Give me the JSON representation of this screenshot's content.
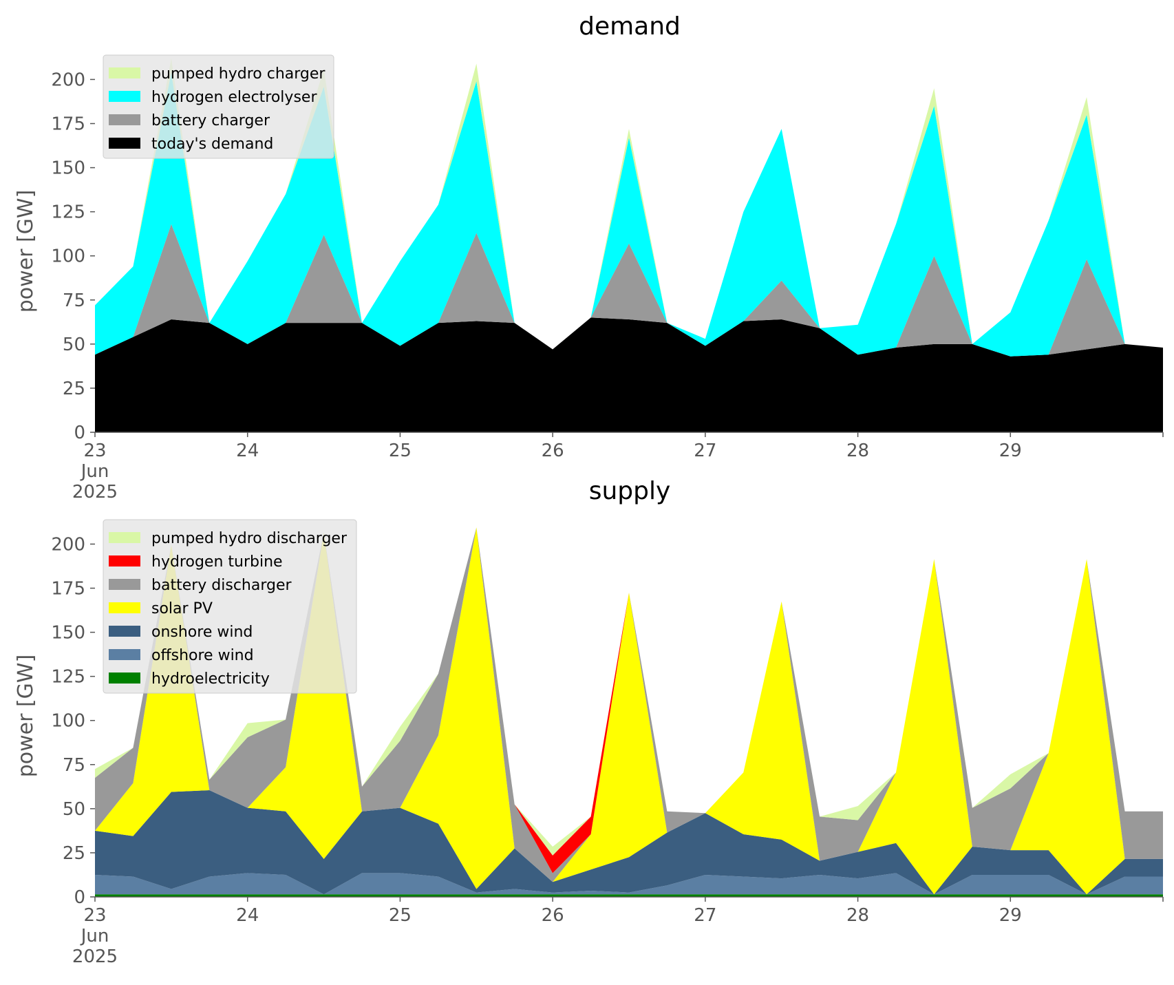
{
  "chart_data": [
    {
      "type": "area",
      "stacked": true,
      "title": "demand",
      "ylabel": "power [GW]",
      "xlabel": "",
      "ylim": [
        0,
        215
      ],
      "yticks": [
        0,
        25,
        50,
        75,
        100,
        125,
        150,
        175,
        200
      ],
      "xlim": [
        "2025-06-23",
        "2025-06-30"
      ],
      "x_tick_labels": [
        "23\nJun\n2025",
        "24",
        "25",
        "26",
        "27",
        "28",
        "29"
      ],
      "grid": false,
      "legend_position": "upper-left",
      "legend": [
        "pumped hydro charger",
        "hydrogen electrolyser",
        "battery charger",
        "today's demand"
      ],
      "x": [
        "2025-06-23",
        "2025-06-23T06:00",
        "2025-06-23T12:00",
        "2025-06-23T18:00",
        "2025-06-24",
        "2025-06-24T06:00",
        "2025-06-24T12:00",
        "2025-06-24T18:00",
        "2025-06-25",
        "2025-06-25T06:00",
        "2025-06-25T12:00",
        "2025-06-25T18:00",
        "2025-06-26",
        "2025-06-26T06:00",
        "2025-06-26T12:00",
        "2025-06-26T18:00",
        "2025-06-27",
        "2025-06-27T06:00",
        "2025-06-27T12:00",
        "2025-06-27T18:00",
        "2025-06-28",
        "2025-06-28T06:00",
        "2025-06-28T12:00",
        "2025-06-28T18:00",
        "2025-06-29",
        "2025-06-29T06:00",
        "2025-06-29T12:00",
        "2025-06-29T18:00",
        "2025-06-30"
      ],
      "series": [
        {
          "name": "today's demand",
          "color": "#000000",
          "values": [
            44,
            54,
            64,
            62,
            50,
            62,
            62,
            62,
            49,
            62,
            63,
            62,
            47,
            65,
            64,
            62,
            49,
            63,
            64,
            59,
            44,
            48,
            50,
            50,
            43,
            44,
            47,
            50,
            48
          ]
        },
        {
          "name": "battery charger",
          "color": "#999999",
          "values": [
            0,
            0,
            54,
            0,
            0,
            0,
            50,
            0,
            0,
            0,
            50,
            0,
            0,
            0,
            43,
            0,
            0,
            0,
            22,
            0,
            0,
            0,
            50,
            0,
            0,
            0,
            51,
            0,
            0
          ]
        },
        {
          "name": "hydrogen electrolyser",
          "color": "#00ffff",
          "values": [
            28,
            40,
            86,
            0,
            47,
            73,
            84,
            0,
            48,
            67,
            86,
            0,
            0,
            0,
            60,
            0,
            4,
            62,
            86,
            0,
            17,
            70,
            85,
            0,
            25,
            76,
            82,
            0,
            0
          ]
        },
        {
          "name": "pumped hydro charger",
          "color": "#d9f7a6",
          "values": [
            0,
            0,
            8,
            0,
            0,
            0,
            10,
            0,
            0,
            0,
            10,
            0,
            0,
            0,
            5,
            0,
            0,
            0,
            0,
            0,
            0,
            0,
            10,
            0,
            0,
            0,
            10,
            0,
            0
          ]
        }
      ]
    },
    {
      "type": "area",
      "stacked": true,
      "title": "supply",
      "ylabel": "power [GW]",
      "xlabel": "",
      "ylim": [
        0,
        215
      ],
      "yticks": [
        0,
        25,
        50,
        75,
        100,
        125,
        150,
        175,
        200
      ],
      "xlim": [
        "2025-06-23",
        "2025-06-30"
      ],
      "x_tick_labels": [
        "23\nJun\n2025",
        "24",
        "25",
        "26",
        "27",
        "28",
        "29"
      ],
      "grid": false,
      "legend_position": "upper-left",
      "legend": [
        "pumped hydro discharger",
        "hydrogen turbine",
        "battery discharger",
        "solar PV",
        "onshore wind",
        "offshore wind",
        "hydroelectricity"
      ],
      "x": [
        "2025-06-23",
        "2025-06-23T06:00",
        "2025-06-23T12:00",
        "2025-06-23T18:00",
        "2025-06-24",
        "2025-06-24T06:00",
        "2025-06-24T12:00",
        "2025-06-24T18:00",
        "2025-06-25",
        "2025-06-25T06:00",
        "2025-06-25T12:00",
        "2025-06-25T18:00",
        "2025-06-26",
        "2025-06-26T06:00",
        "2025-06-26T12:00",
        "2025-06-26T18:00",
        "2025-06-27",
        "2025-06-27T06:00",
        "2025-06-27T12:00",
        "2025-06-27T18:00",
        "2025-06-28",
        "2025-06-28T06:00",
        "2025-06-28T12:00",
        "2025-06-28T18:00",
        "2025-06-29",
        "2025-06-29T06:00",
        "2025-06-29T12:00",
        "2025-06-29T18:00",
        "2025-06-30"
      ],
      "series": [
        {
          "name": "hydroelectricity",
          "color": "#008000",
          "values": [
            1.5,
            1.5,
            1.5,
            1.5,
            1.5,
            1.5,
            1.5,
            1.5,
            1.5,
            1.5,
            1.5,
            1.5,
            1.5,
            1.5,
            1.5,
            1.5,
            1.5,
            1.5,
            1.5,
            1.5,
            1.5,
            1.5,
            1.5,
            1.5,
            1.5,
            1.5,
            1.5,
            1.5,
            1.5
          ]
        },
        {
          "name": "offshore wind",
          "color": "#5b7fa3",
          "values": [
            11,
            10,
            3,
            10,
            12,
            11,
            0,
            12,
            12,
            10,
            1,
            3,
            1,
            2,
            1,
            5,
            11,
            10,
            9,
            11,
            9,
            12,
            0,
            11,
            11,
            11,
            0,
            10,
            10
          ]
        },
        {
          "name": "onshore wind",
          "color": "#3b5e80",
          "values": [
            25,
            23,
            55,
            49,
            37,
            36,
            20,
            35,
            37,
            30,
            2,
            23,
            6,
            12,
            20,
            30,
            35,
            24,
            22,
            8,
            15,
            17,
            0,
            16,
            14,
            14,
            0,
            10,
            10
          ]
        },
        {
          "name": "solar PV",
          "color": "#ffff00",
          "values": [
            0,
            30,
            140,
            0,
            0,
            25,
            185,
            0,
            0,
            50,
            205,
            0,
            0,
            20,
            150,
            0,
            0,
            35,
            135,
            0,
            0,
            40,
            190,
            0,
            0,
            55,
            190,
            0,
            0
          ]
        },
        {
          "name": "battery discharger",
          "color": "#999999",
          "values": [
            30,
            20,
            0,
            6,
            40,
            27,
            0,
            14,
            38,
            35,
            0,
            25,
            5,
            0,
            0,
            12,
            0,
            0,
            0,
            25,
            18,
            0,
            0,
            22,
            35,
            0,
            0,
            27,
            27
          ]
        },
        {
          "name": "hydrogen turbine",
          "color": "#ff0000",
          "values": [
            0,
            0,
            0,
            0,
            0,
            0,
            0,
            0,
            0,
            0,
            0,
            0,
            10,
            10,
            0,
            0,
            0,
            0,
            0,
            0,
            0,
            0,
            0,
            0,
            0,
            0,
            0,
            0,
            0
          ]
        },
        {
          "name": "pumped hydro discharger",
          "color": "#d9f7a6",
          "values": [
            5,
            0,
            0,
            0,
            8,
            0,
            0,
            0,
            8,
            0,
            0,
            0,
            5,
            0,
            0,
            0,
            0,
            0,
            0,
            0,
            8,
            0,
            0,
            0,
            8,
            0,
            0,
            0,
            0
          ]
        }
      ]
    }
  ]
}
